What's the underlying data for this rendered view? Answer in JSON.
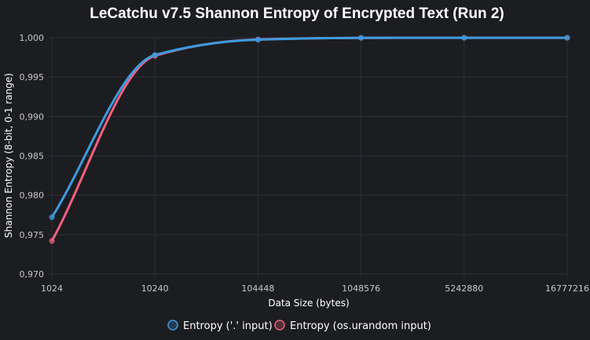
{
  "chart_data": {
    "type": "line",
    "title": "LeCatchu v7.5 Shannon Entropy of Encrypted Text (Run 2)",
    "xlabel": "Data Size (bytes)",
    "ylabel": "Shannon Entropy (8-bit, 0-1 range)",
    "categories": [
      "1024",
      "10240",
      "104448",
      "1048576",
      "5242880",
      "16777216"
    ],
    "ylim": [
      0.97,
      1.0
    ],
    "yticks": [
      "0,970",
      "0,975",
      "0,980",
      "0,985",
      "0,990",
      "0,995",
      "1,000"
    ],
    "ytick_values": [
      0.97,
      0.975,
      0.98,
      0.985,
      0.99,
      0.995,
      1.0
    ],
    "grid": true,
    "legend_position": "bottom",
    "series": [
      {
        "name": "Entropy ('.' input)",
        "color": "#3b9be0",
        "values": [
          0.9772,
          0.9978,
          0.99975,
          0.99998,
          0.99999,
          0.99999
        ]
      },
      {
        "name": "Entropy (os.urandom input)",
        "color": "#f0607e",
        "values": [
          0.9742,
          0.9977,
          0.99978,
          0.99998,
          0.99999,
          0.99999
        ]
      }
    ]
  }
}
